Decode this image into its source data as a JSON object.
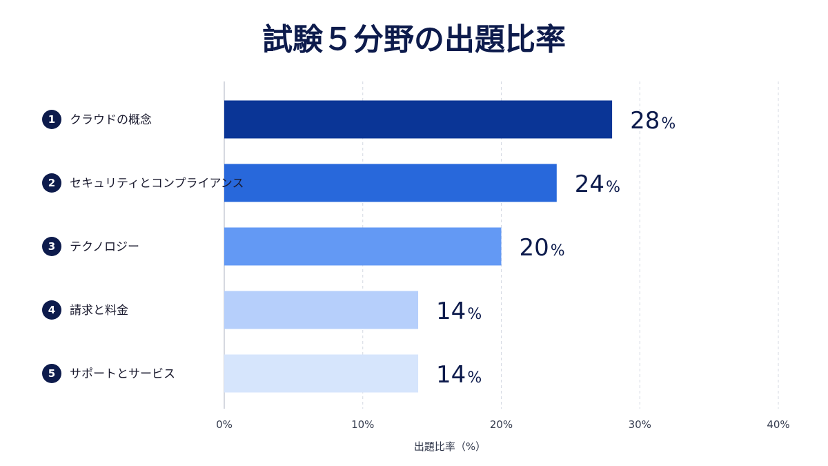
{
  "chart_data": {
    "type": "bar",
    "orientation": "horizontal",
    "title": "試験５分野の出題比率",
    "xlabel": "出題比率（%）",
    "categories": [
      {
        "number": "1",
        "label": "クラウドの概念"
      },
      {
        "number": "2",
        "label": "セキュリティとコンプライアンス"
      },
      {
        "number": "3",
        "label": "テクノロジー"
      },
      {
        "number": "4",
        "label": "請求と料金"
      },
      {
        "number": "5",
        "label": "サポートとサービス"
      }
    ],
    "values": [
      28,
      24,
      20,
      14,
      14
    ],
    "value_labels": [
      "28",
      "24",
      "20",
      "14",
      "14"
    ],
    "value_unit": "%",
    "bar_colors": [
      "#0a3596",
      "#2868db",
      "#6399f4",
      "#b6cffb",
      "#d6e5fc"
    ],
    "xlim": [
      0,
      40
    ],
    "xticks": [
      "0%",
      "10%",
      "20%",
      "30%",
      "40%"
    ],
    "xtick_values": [
      0,
      10,
      20,
      30,
      40
    ],
    "grid": "vertical-dashed",
    "badge_color": "#0d1b4c",
    "text_color": "#0d1b4c"
  }
}
